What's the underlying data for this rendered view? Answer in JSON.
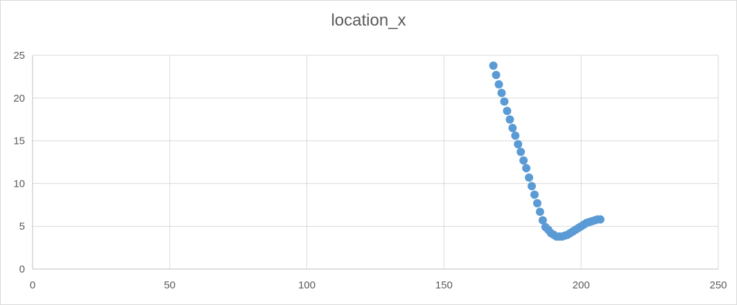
{
  "chart_data": {
    "type": "scatter",
    "title": "location_x",
    "xlabel": "",
    "ylabel": "",
    "xlim": [
      0,
      250
    ],
    "ylim": [
      0,
      25
    ],
    "xticks": [
      0,
      50,
      100,
      150,
      200,
      250
    ],
    "yticks": [
      0,
      5,
      10,
      15,
      20,
      25
    ],
    "grid": true,
    "legend": "none",
    "colors": {
      "marker": "#5b9bd5",
      "grid": "#d9d9d9",
      "axis": "#bfbfbf",
      "text": "#595959"
    },
    "series": [
      {
        "x": [
          168,
          169,
          170,
          171,
          172,
          173,
          174,
          175,
          176,
          177,
          178,
          179,
          180,
          181,
          182,
          183,
          184,
          185,
          186,
          187,
          188,
          189,
          190,
          191,
          192,
          193,
          194,
          195,
          196,
          197,
          198,
          199,
          200,
          201,
          202,
          203,
          204,
          205,
          206,
          207
        ],
        "y": [
          23.8,
          22.7,
          21.6,
          20.6,
          19.6,
          18.5,
          17.5,
          16.5,
          15.6,
          14.6,
          13.7,
          12.7,
          11.8,
          10.7,
          9.7,
          8.7,
          7.7,
          6.7,
          5.7,
          4.9,
          4.6,
          4.2,
          4.0,
          3.8,
          3.8,
          3.8,
          3.9,
          4.0,
          4.2,
          4.4,
          4.6,
          4.8,
          5.0,
          5.2,
          5.4,
          5.5,
          5.6,
          5.7,
          5.8,
          5.8
        ]
      }
    ]
  }
}
